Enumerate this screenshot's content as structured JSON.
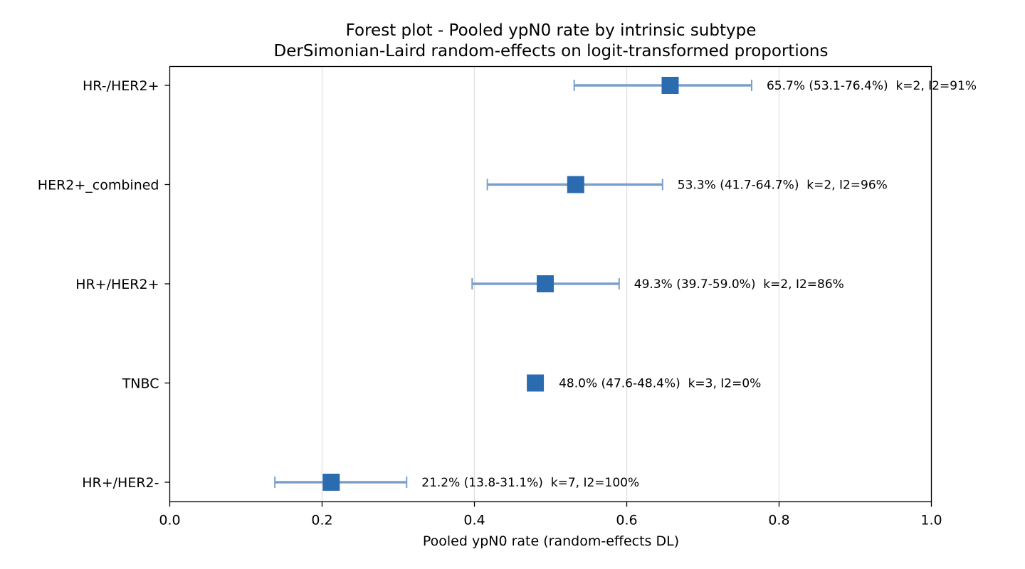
{
  "chart_data": {
    "type": "forest",
    "title": "Forest plot - Pooled ypN0 rate by intrinsic subtype",
    "subtitle": "DerSimonian-Laird random-effects on logit-transformed proportions",
    "xlabel": "Pooled ypN0 rate (random-effects DL)",
    "ylabel": "",
    "xlim": [
      0.0,
      1.0
    ],
    "xticks": [
      0.0,
      0.2,
      0.4,
      0.6,
      0.8,
      1.0
    ],
    "xtick_labels": [
      "0.0",
      "0.2",
      "0.4",
      "0.6",
      "0.8",
      "1.0"
    ],
    "grid": "vertical",
    "colors": {
      "point": "#2b6cb0",
      "ci": "#7a9fcc",
      "grid": "#e0e0e0"
    },
    "rows": [
      {
        "label": "HR-/HER2+",
        "estimate": 0.657,
        "lower": 0.531,
        "upper": 0.764,
        "annotation": "65.7% (53.1-76.4%)  k=2, I2=91%"
      },
      {
        "label": "HER2+_combined",
        "estimate": 0.533,
        "lower": 0.417,
        "upper": 0.647,
        "annotation": "53.3% (41.7-64.7%)  k=2, I2=96%"
      },
      {
        "label": "HR+/HER2+",
        "estimate": 0.493,
        "lower": 0.397,
        "upper": 0.59,
        "annotation": "49.3% (39.7-59.0%)  k=2, I2=86%"
      },
      {
        "label": "TNBC",
        "estimate": 0.48,
        "lower": 0.476,
        "upper": 0.484,
        "annotation": "48.0% (47.6-48.4%)  k=3, I2=0%"
      },
      {
        "label": "HR+/HER2-",
        "estimate": 0.212,
        "lower": 0.138,
        "upper": 0.311,
        "annotation": "21.2% (13.8-31.1%)  k=7, I2=100%"
      }
    ]
  }
}
